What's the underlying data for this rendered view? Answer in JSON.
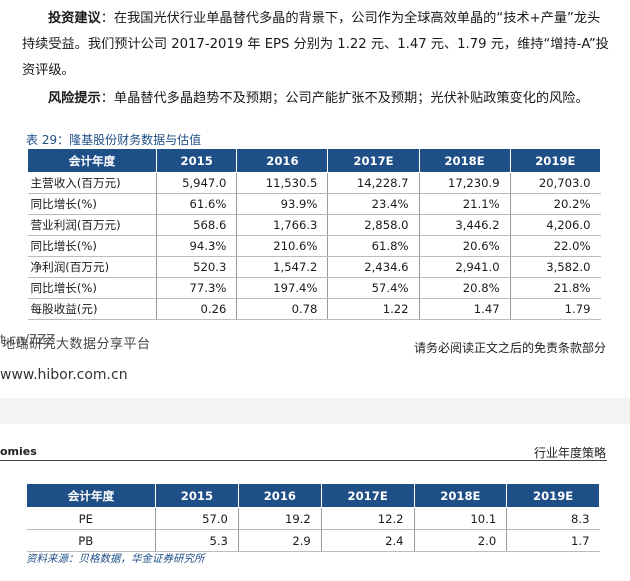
{
  "paragraphs": {
    "investment_label": "投资建议",
    "investment_text": "：在我国光伏行业单晶替代多晶的背景下，公司作为全球高效单晶的“技术+产量”龙头持续受益。我们预计公司 2017-2019 年 EPS 分别为 1.22 元、1.47 元、1.79 元，维持“增持-A”投资评级。",
    "risk_label": "风险提示",
    "risk_text": "：单晶替代多晶趋势不及预期；公司产能扩张不及预期；光伏补贴政策变化的风险。"
  },
  "financial_table": {
    "title": "表 29：隆基股份财务数据与估值",
    "headers": [
      "会计年度",
      "2015",
      "2016",
      "2017E",
      "2018E",
      "2019E"
    ],
    "rows": [
      {
        "label": "主营收入(百万元)",
        "values": [
          "5,947.0",
          "11,530.5",
          "14,228.7",
          "17,230.9",
          "20,703.0"
        ]
      },
      {
        "label": "同比增长(%)",
        "values": [
          "61.6%",
          "93.9%",
          "23.4%",
          "21.1%",
          "20.2%"
        ]
      },
      {
        "label": "营业利润(百万元)",
        "values": [
          "568.6",
          "1,766.3",
          "2,858.0",
          "3,446.2",
          "4,206.0"
        ]
      },
      {
        "label": "同比增长(%)",
        "values": [
          "94.3%",
          "210.6%",
          "61.8%",
          "20.6%",
          "22.0%"
        ]
      },
      {
        "label": "净利润(百万元)",
        "values": [
          "520.3",
          "1,547.2",
          "2,434.6",
          "2,941.0",
          "3,582.0"
        ]
      },
      {
        "label": "同比增长(%)",
        "values": [
          "77.3%",
          "197.4%",
          "57.4%",
          "20.8%",
          "21.8%"
        ]
      },
      {
        "label": "每股收益(元)",
        "values": [
          "0.26",
          "0.78",
          "1.22",
          "1.47",
          "1.79"
        ]
      }
    ]
  },
  "footer": {
    "overlap_back": "t.cn/7ZZ",
    "overlap_front": "地端研究大数据分享平台",
    "disclaimer": "请务必阅读正文之后的免责条款部分",
    "url": "www.hibor.com.cn"
  },
  "page2_header": {
    "left": "omies",
    "right": "行业年度策略"
  },
  "valuation_table": {
    "headers": [
      "会计年度",
      "2015",
      "2016",
      "2017E",
      "2018E",
      "2019E"
    ],
    "rows": [
      {
        "label": "PE",
        "values": [
          "57.0",
          "19.2",
          "12.2",
          "10.1",
          "8.3"
        ]
      },
      {
        "label": "PB",
        "values": [
          "5.3",
          "2.9",
          "2.4",
          "2.0",
          "1.7"
        ]
      }
    ]
  },
  "source": "资料来源：贝格数据，华金证券研究所"
}
